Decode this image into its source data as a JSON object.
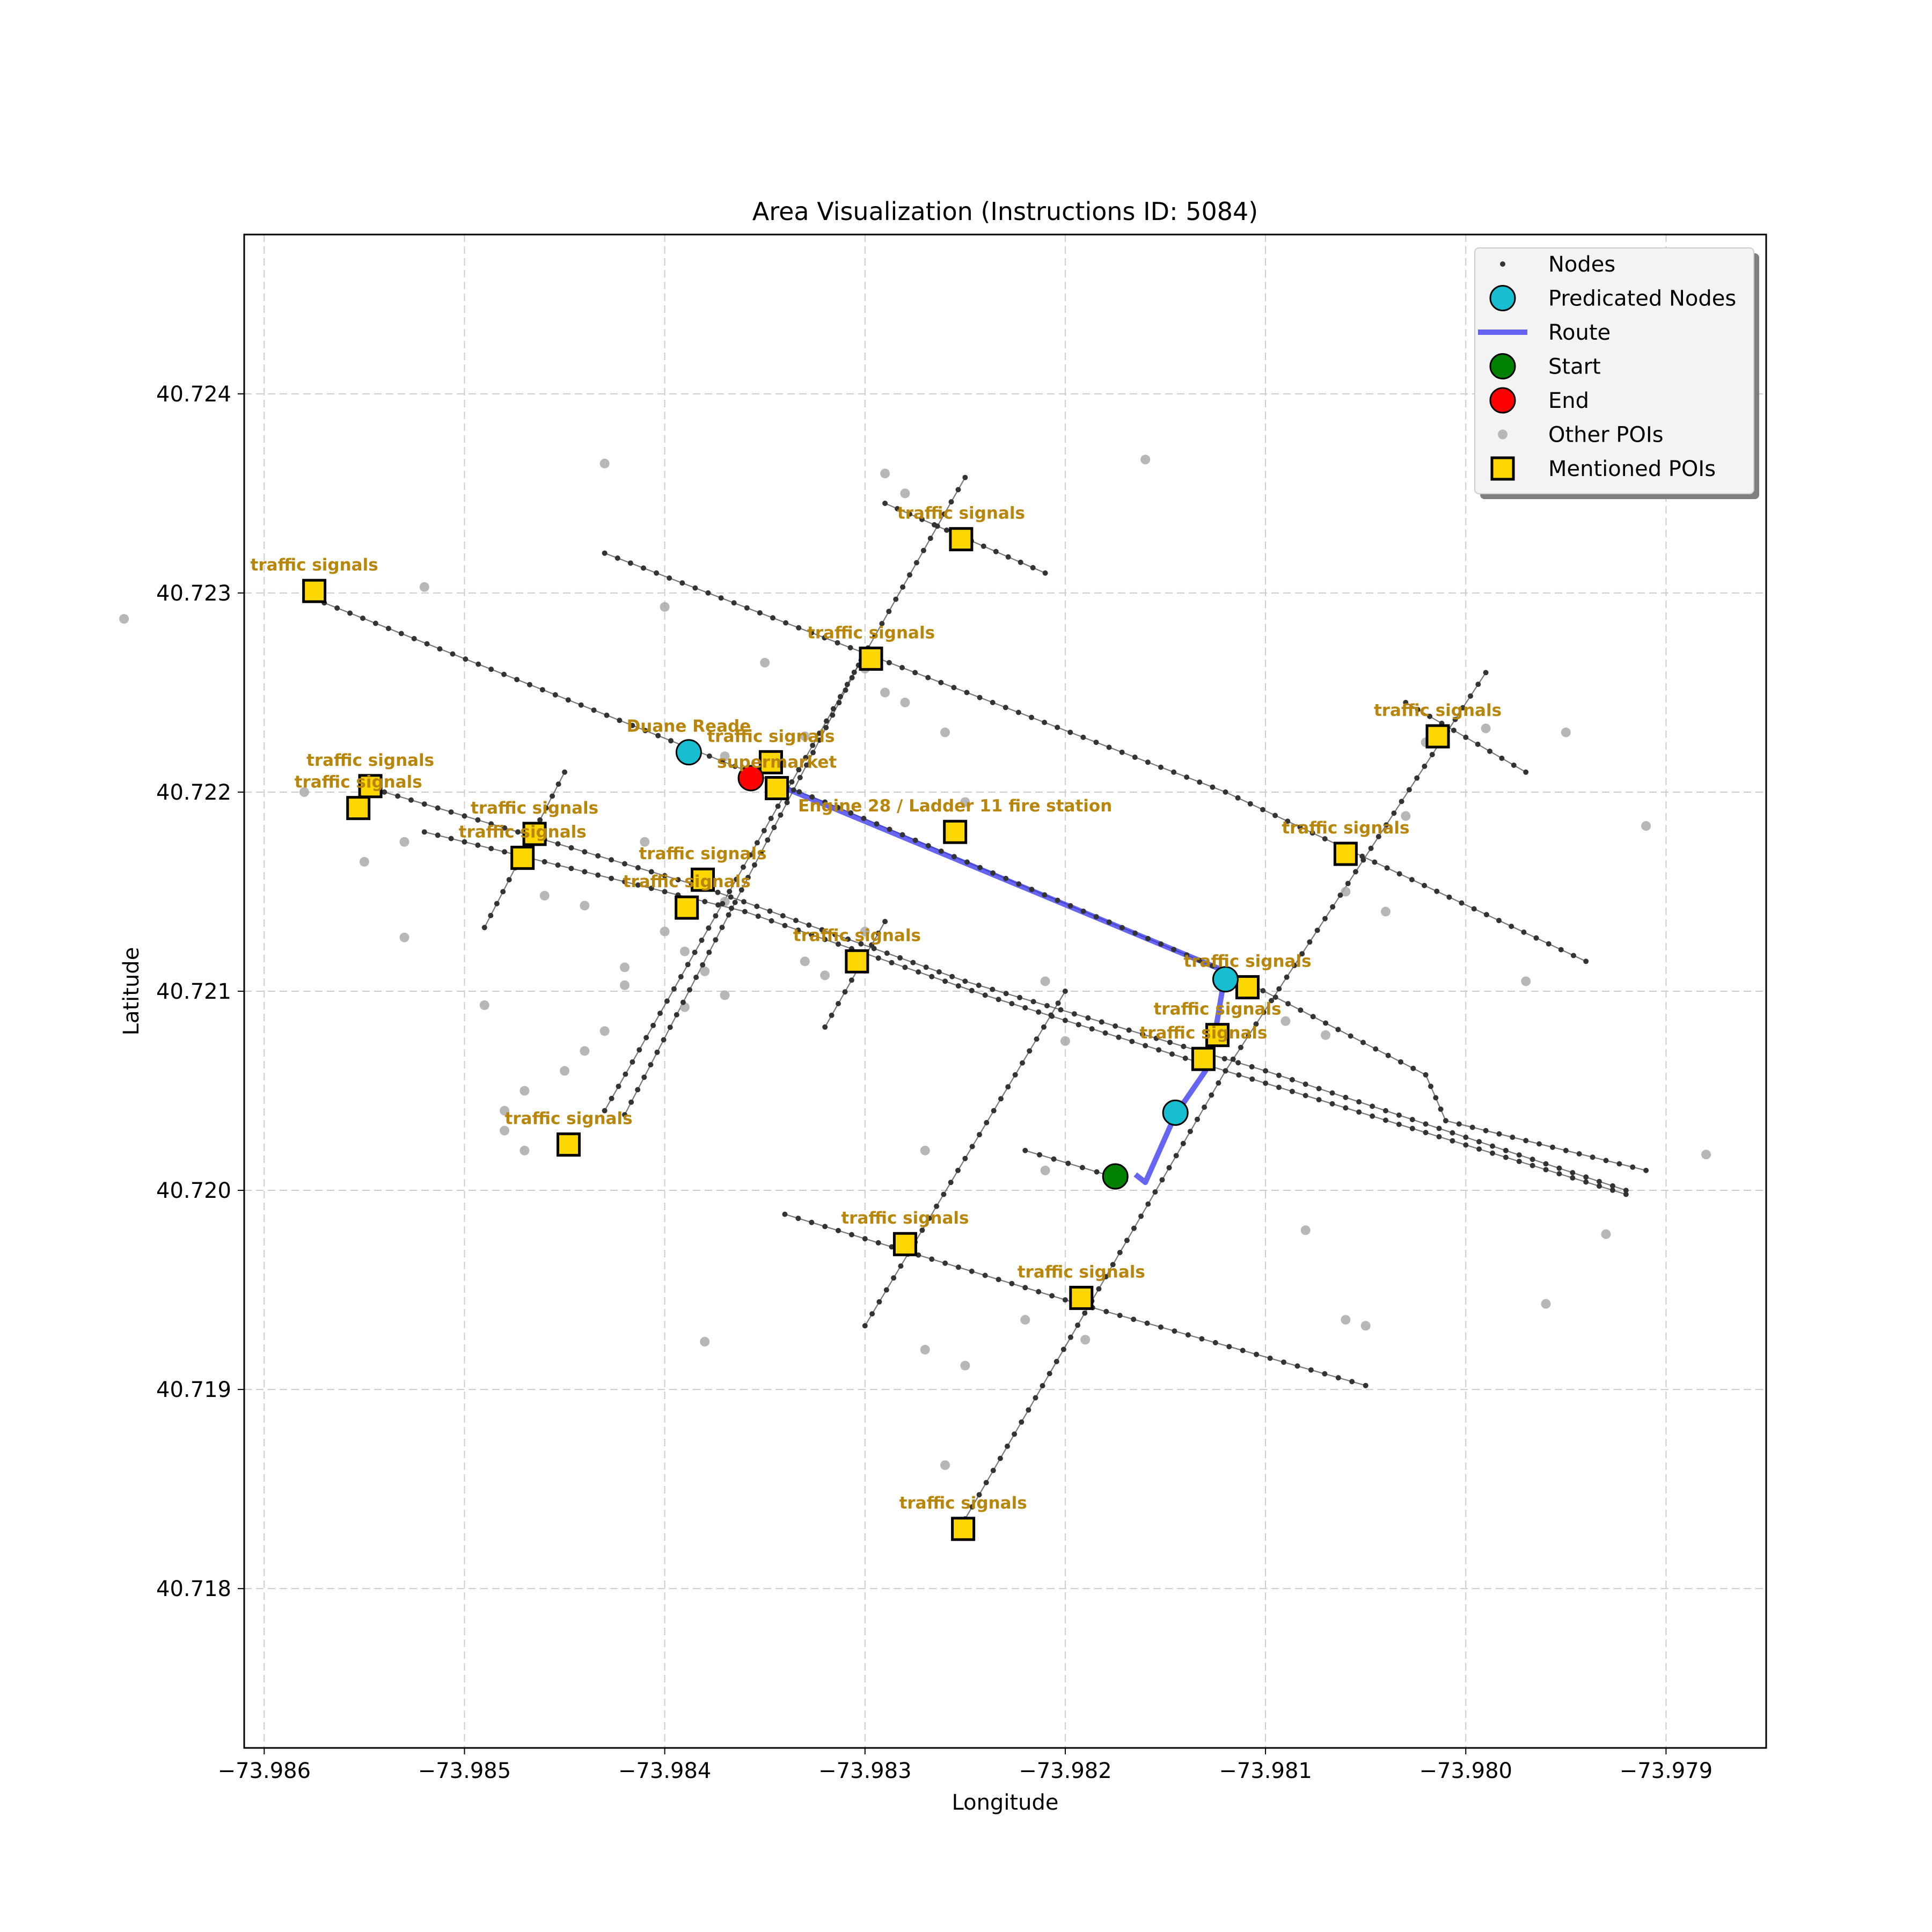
{
  "chart_data": {
    "type": "scatter",
    "title": "Area Visualization (Instructions ID: 5084)",
    "xlabel": "Longitude",
    "ylabel": "Latitude",
    "xlim": [
      -73.9861,
      -73.9785
    ],
    "ylim": [
      40.7172,
      40.7248
    ],
    "xticks": [
      -73.986,
      -73.985,
      -73.984,
      -73.983,
      -73.982,
      -73.981,
      -73.98,
      -73.979
    ],
    "xtick_labels": [
      "−73.986",
      "−73.985",
      "−73.984",
      "−73.983",
      "−73.982",
      "−73.981",
      "−73.980",
      "−73.979"
    ],
    "yticks": [
      40.718,
      40.719,
      40.72,
      40.721,
      40.722,
      40.723,
      40.724
    ],
    "ytick_labels": [
      "40.718",
      "40.719",
      "40.720",
      "40.721",
      "40.722",
      "40.723",
      "40.724"
    ],
    "grid": true,
    "legend_position": "top-right",
    "legend": [
      {
        "key": "nodes",
        "label": "Nodes"
      },
      {
        "key": "predicated",
        "label": "Predicated Nodes"
      },
      {
        "key": "route",
        "label": "Route"
      },
      {
        "key": "start",
        "label": "Start"
      },
      {
        "key": "end",
        "label": "End"
      },
      {
        "key": "other_pois",
        "label": "Other POIs"
      },
      {
        "key": "mentioned",
        "label": "Mentioned POIs"
      }
    ],
    "colors": {
      "nodes": "#333333",
      "edges": "#555555",
      "predicated": "#17becf",
      "route": "#3333ee",
      "start": "#008000",
      "end": "#ff0000",
      "other_pois": "#aaaaaa",
      "mentioned": "#ffd700",
      "poi_text": "#b8860b",
      "grid": "#cccccc"
    },
    "streets": [
      [
        [
          -73.9857,
          40.72295
        ],
        [
          -73.9832,
          40.72195
        ],
        [
          -73.9812,
          40.7211
        ],
        [
          -73.9802,
          40.72058
        ],
        [
          -73.9801,
          40.72035
        ],
        [
          -73.9791,
          40.7201
        ]
      ],
      [
        [
          -73.9843,
          40.7232
        ],
        [
          -73.9812,
          40.722
        ],
        [
          -73.9794,
          40.72115
        ]
      ],
      [
        [
          -73.9854,
          40.722
        ],
        [
          -73.9838,
          40.72152
        ],
        [
          -73.9825,
          40.72105
        ],
        [
          -73.981,
          40.7206
        ],
        [
          -73.9792,
          40.72
        ]
      ],
      [
        [
          -73.9852,
          40.7218
        ],
        [
          -73.9836,
          40.7214
        ],
        [
          -73.9824,
          40.72098
        ],
        [
          -73.9812,
          40.7206
        ],
        [
          -73.9792,
          40.71998
        ]
      ],
      [
        [
          -73.9834,
          40.71988
        ],
        [
          -73.982,
          40.71945
        ],
        [
          -73.9805,
          40.71902
        ]
      ],
      [
        [
          -73.9822,
          40.7202
        ],
        [
          -73.9817,
          40.72005
        ]
      ],
      [
        [
          -73.9829,
          40.72345
        ],
        [
          -73.9821,
          40.7231
        ]
      ],
      [
        [
          -73.9803,
          40.72245
        ],
        [
          -73.9797,
          40.7221
        ]
      ],
      [
        [
          -73.9825,
          40.72358
        ],
        [
          -73.9843,
          40.7204
        ]
      ],
      [
        [
          -73.9842,
          40.72038
        ],
        [
          -73.983,
          40.7227
        ]
      ],
      [
        [
          -73.9849,
          40.72132
        ],
        [
          -73.9845,
          40.7221
        ]
      ],
      [
        [
          -73.9832,
          40.72082
        ],
        [
          -73.9829,
          40.72135
        ]
      ],
      [
        [
          -73.983,
          40.71932
        ],
        [
          -73.982,
          40.721
        ]
      ],
      [
        [
          -73.9825,
          40.71835
        ],
        [
          -73.9812,
          40.7206
        ]
      ],
      [
        [
          -73.9812,
          40.7206
        ],
        [
          -73.9799,
          40.7226
        ]
      ]
    ],
    "route": [
      [
        -73.98347,
        40.72205
      ],
      [
        -73.9812,
        40.7211
      ],
      [
        -73.98125,
        40.7208
      ],
      [
        -73.9813,
        40.7206
      ],
      [
        -73.98145,
        40.72038
      ],
      [
        -73.9816,
        40.72004
      ],
      [
        -73.98165,
        40.72008
      ]
    ],
    "predicated_nodes": [
      [
        -73.98388,
        40.7222
      ],
      [
        -73.9812,
        40.72106
      ],
      [
        -73.98145,
        40.72039
      ]
    ],
    "start": [
      -73.98175,
      40.72007
    ],
    "end": [
      -73.98357,
      40.72207
    ],
    "other_pois": [
      [
        -73.9843,
        40.72365
      ],
      [
        -73.9829,
        40.7236
      ],
      [
        -73.9828,
        40.7235
      ],
      [
        -73.9816,
        40.72367
      ],
      [
        -73.9852,
        40.72303
      ],
      [
        -73.9867,
        40.72287
      ],
      [
        -73.984,
        40.72293
      ],
      [
        -73.9835,
        40.72265
      ],
      [
        -73.983,
        40.72262
      ],
      [
        -73.9829,
        40.7225
      ],
      [
        -73.9828,
        40.72245
      ],
      [
        -73.9826,
        40.7223
      ],
      [
        -73.9833,
        40.72228
      ],
      [
        -73.9837,
        40.72218
      ],
      [
        -73.9858,
        40.722
      ],
      [
        -73.9853,
        40.72175
      ],
      [
        -73.9855,
        40.72165
      ],
      [
        -73.9846,
        40.72148
      ],
      [
        -73.9844,
        40.72143
      ],
      [
        -73.9841,
        40.72175
      ],
      [
        -73.984,
        40.7213
      ],
      [
        -73.9839,
        40.7212
      ],
      [
        -73.9838,
        40.7211
      ],
      [
        -73.9837,
        40.72098
      ],
      [
        -73.9842,
        40.72112
      ],
      [
        -73.9842,
        40.72103
      ],
      [
        -73.9843,
        40.7208
      ],
      [
        -73.9844,
        40.7207
      ],
      [
        -73.9845,
        40.7206
      ],
      [
        -73.9847,
        40.7205
      ],
      [
        -73.9848,
        40.7204
      ],
      [
        -73.9848,
        40.7203
      ],
      [
        -73.9847,
        40.7202
      ],
      [
        -73.9849,
        40.72093
      ],
      [
        -73.9833,
        40.72115
      ],
      [
        -73.9839,
        40.72092
      ],
      [
        -73.9832,
        40.72108
      ],
      [
        -73.983,
        40.7213
      ],
      [
        -73.9825,
        40.72195
      ],
      [
        -73.9821,
        40.72105
      ],
      [
        -73.982,
        40.72075
      ],
      [
        -73.9809,
        40.72085
      ],
      [
        -73.9807,
        40.72078
      ],
      [
        -73.9806,
        40.7215
      ],
      [
        -73.9804,
        40.7214
      ],
      [
        -73.9803,
        40.72188
      ],
      [
        -73.9802,
        40.72225
      ],
      [
        -73.9799,
        40.72232
      ],
      [
        -73.9795,
        40.7223
      ],
      [
        -73.9791,
        40.72183
      ],
      [
        -73.9797,
        40.72105
      ],
      [
        -73.9788,
        40.72018
      ],
      [
        -73.9827,
        40.7202
      ],
      [
        -73.9821,
        40.7201
      ],
      [
        -73.9822,
        40.71935
      ],
      [
        -73.9819,
        40.71925
      ],
      [
        -73.9808,
        40.7198
      ],
      [
        -73.9806,
        40.71935
      ],
      [
        -73.9805,
        40.71932
      ],
      [
        -73.9796,
        40.71943
      ],
      [
        -73.9793,
        40.71978
      ],
      [
        -73.9838,
        40.71924
      ],
      [
        -73.9827,
        40.7192
      ],
      [
        -73.9825,
        40.71912
      ],
      [
        -73.9826,
        40.71862
      ],
      [
        -73.9853,
        40.72127
      ],
      [
        -73.9837,
        40.72145
      ]
    ],
    "mentioned_pois": [
      {
        "label": "traffic signals",
        "lon": -73.98575,
        "lat": 40.72301
      },
      {
        "label": "traffic signals",
        "lon": -73.98252,
        "lat": 40.72327
      },
      {
        "label": "traffic signals",
        "lon": -73.98297,
        "lat": 40.72267
      },
      {
        "label": "traffic signals",
        "lon": -73.98014,
        "lat": 40.72228
      },
      {
        "label": "traffic signals",
        "lon": -73.98547,
        "lat": 40.72203
      },
      {
        "label": "traffic signals",
        "lon": -73.98553,
        "lat": 40.72192
      },
      {
        "label": "traffic signals",
        "lon": -73.98347,
        "lat": 40.72215
      },
      {
        "label": "supermarket",
        "lon": -73.98344,
        "lat": 40.72202
      },
      {
        "label": "Engine 28 / Ladder 11 fire station",
        "lon": -73.98255,
        "lat": 40.7218
      },
      {
        "label": "traffic signals",
        "lon": -73.98465,
        "lat": 40.72179
      },
      {
        "label": "traffic signals",
        "lon": -73.98471,
        "lat": 40.72167
      },
      {
        "label": "traffic signals",
        "lon": -73.98381,
        "lat": 40.72156
      },
      {
        "label": "traffic signals",
        "lon": -73.98389,
        "lat": 40.72142
      },
      {
        "label": "traffic signals",
        "lon": -73.9806,
        "lat": 40.72169
      },
      {
        "label": "traffic signals",
        "lon": -73.98304,
        "lat": 40.72115
      },
      {
        "label": "traffic signals",
        "lon": -73.98109,
        "lat": 40.72102
      },
      {
        "label": "traffic signals",
        "lon": -73.98124,
        "lat": 40.72078
      },
      {
        "label": "traffic signals",
        "lon": -73.98131,
        "lat": 40.72066
      },
      {
        "label": "traffic signals",
        "lon": -73.98448,
        "lat": 40.72023
      },
      {
        "label": "traffic signals",
        "lon": -73.9828,
        "lat": 40.71973
      },
      {
        "label": "traffic signals",
        "lon": -73.98192,
        "lat": 40.71946
      },
      {
        "label": "traffic signals",
        "lon": -73.98251,
        "lat": 40.7183
      }
    ],
    "text_annotations": [
      {
        "label": "Duane Reade",
        "lon": -73.98388,
        "lat": 40.7222
      }
    ]
  }
}
